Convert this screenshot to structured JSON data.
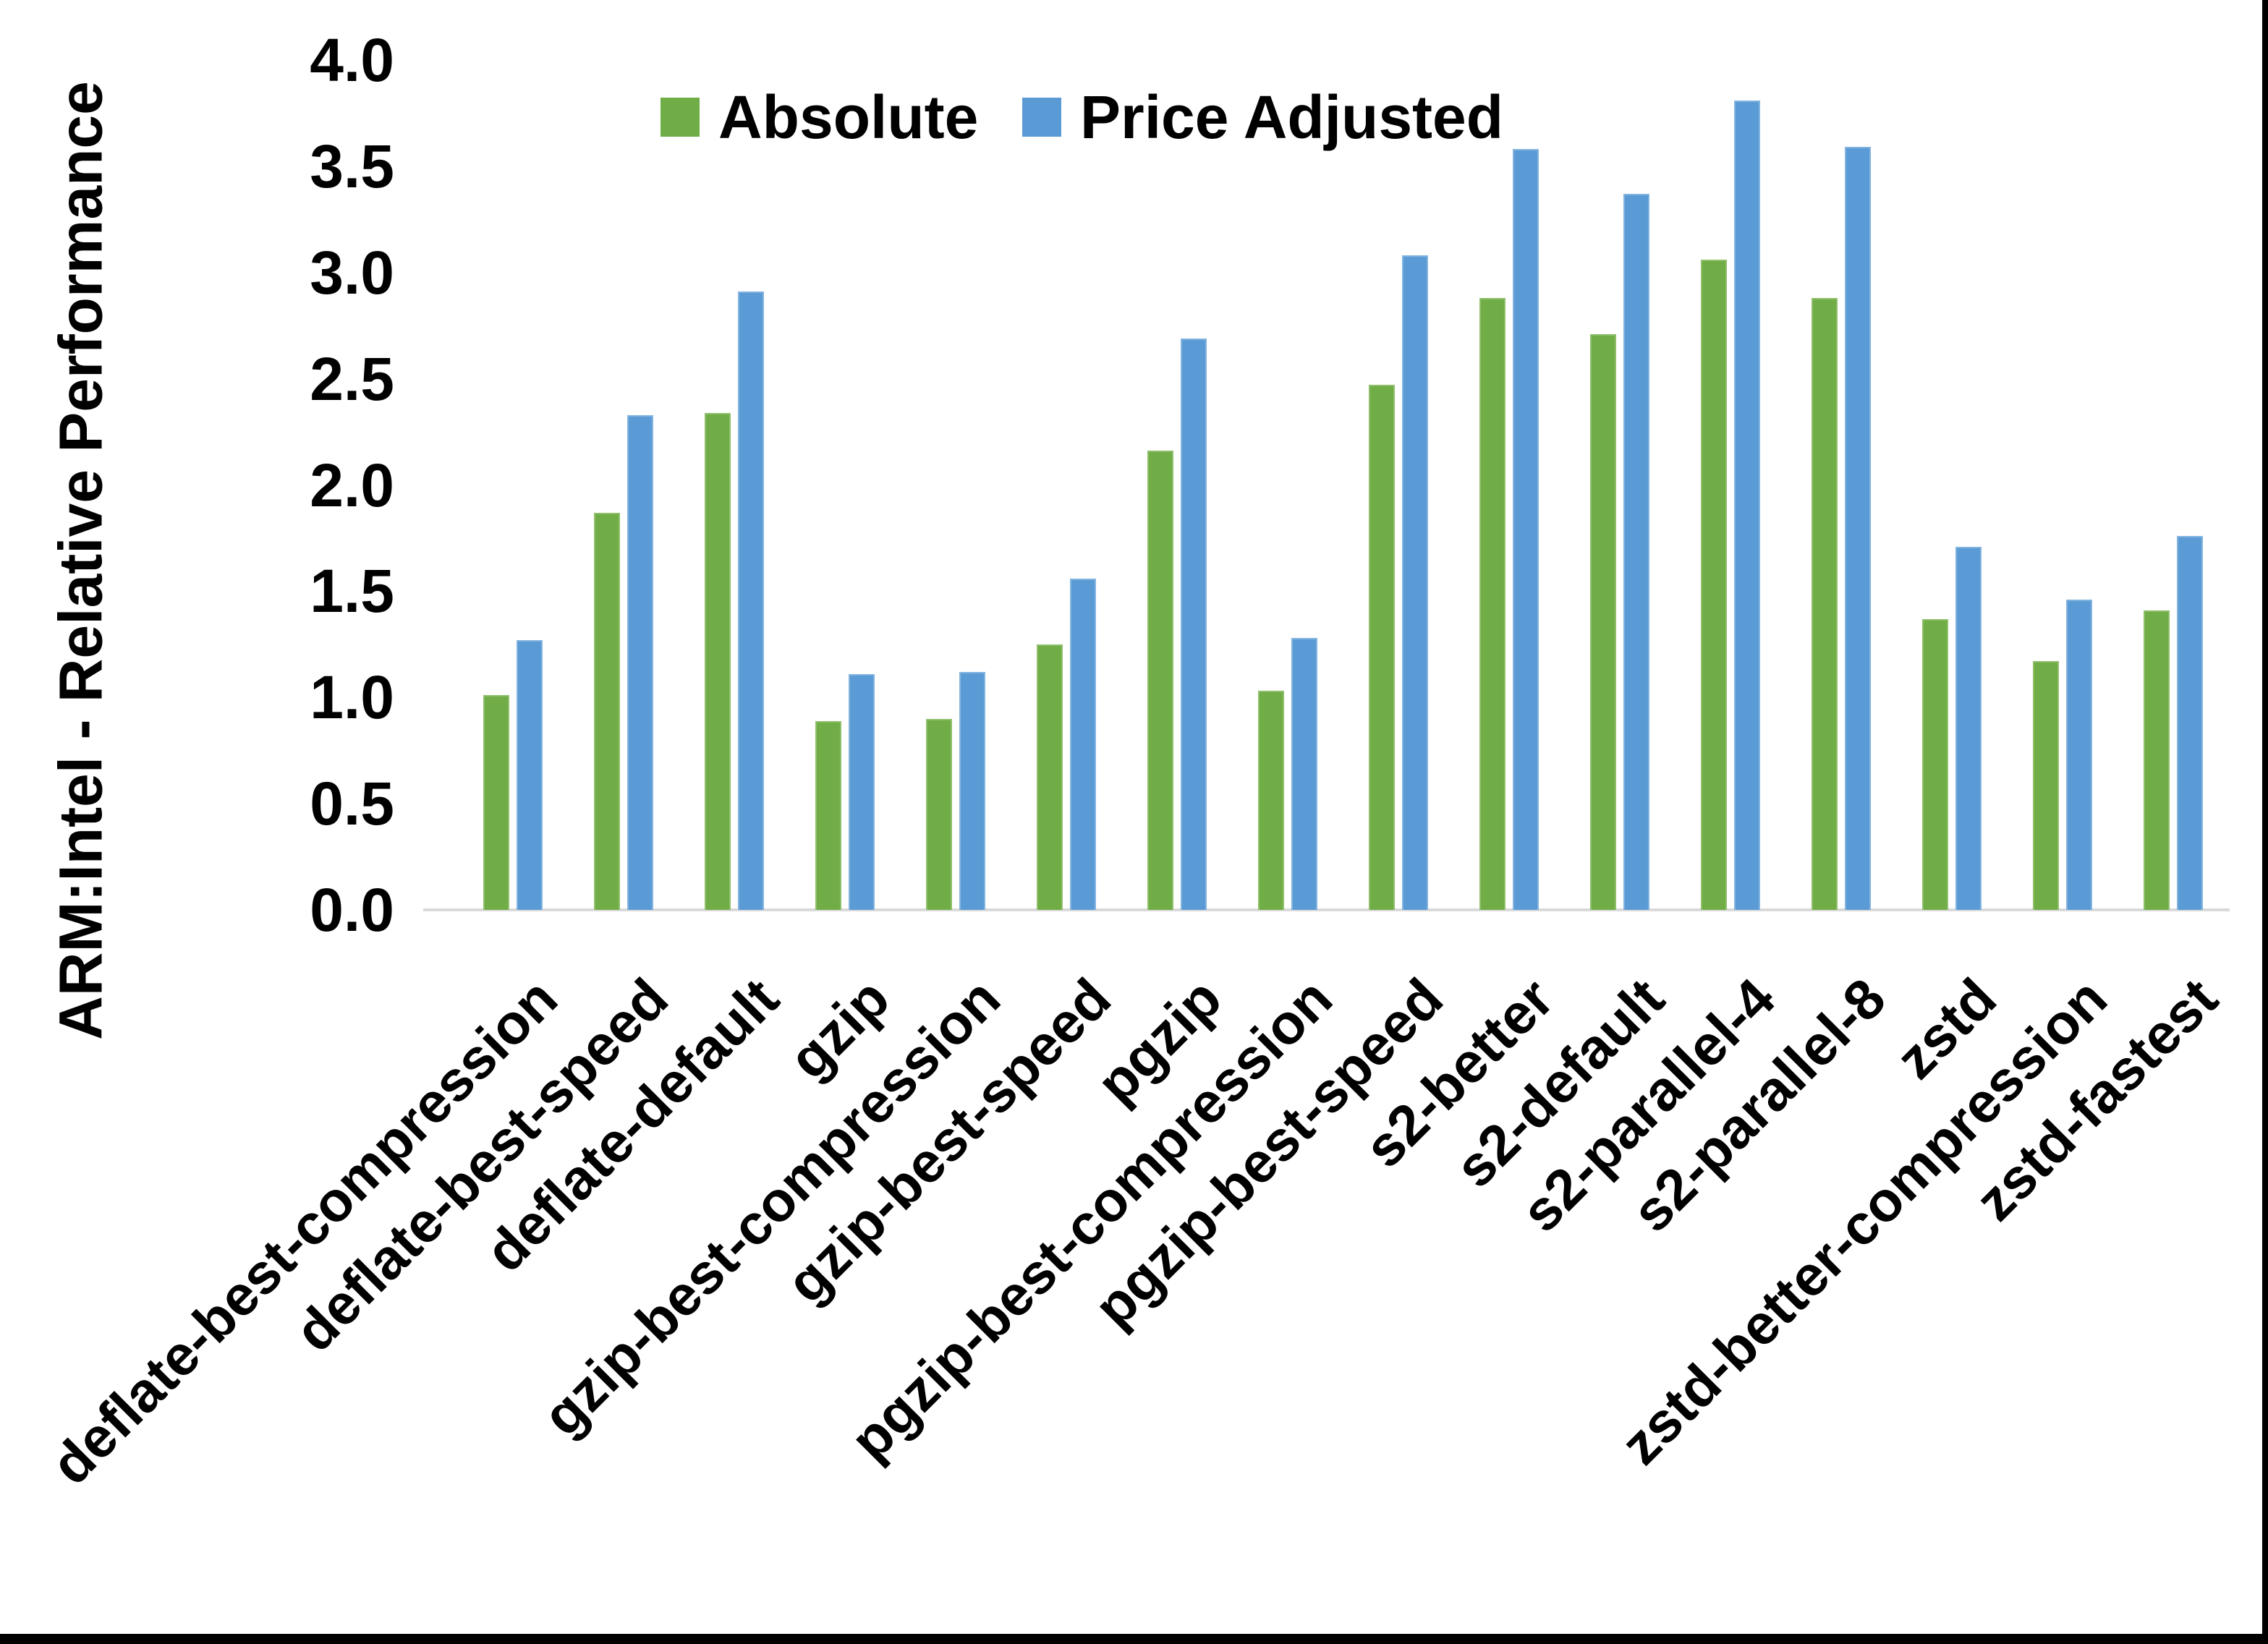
{
  "chart_data": {
    "type": "bar",
    "title": "",
    "ylabel": "ARM:Intel - Relative Performance",
    "xlabel": "",
    "ylim": [
      0.0,
      4.0
    ],
    "ytick_step": 0.5,
    "grid": false,
    "legend_position": "top-center",
    "x_label_rotation_deg": 45,
    "categories": [
      "deflate-best-compression",
      "deflate-best-speed",
      "deflate-default",
      "gzip",
      "gzip-best-compression",
      "gzip-best-speed",
      "pgzip",
      "pgzip-best-compression",
      "pgzip-best-speed",
      "s2-better",
      "s2-default",
      "s2-parallel-4",
      "s2-parallel-8",
      "zstd",
      "zstd-better-compression",
      "zstd-fastest"
    ],
    "series": [
      {
        "name": "Absolute",
        "color": "#70AD47",
        "border_color": "#8FBF6B",
        "values": [
          1.01,
          1.87,
          2.34,
          0.89,
          0.9,
          1.25,
          2.16,
          1.03,
          2.47,
          2.88,
          2.71,
          3.06,
          2.88,
          1.37,
          1.17,
          1.41
        ]
      },
      {
        "name": "Price Adjusted",
        "color": "#5B9BD5",
        "border_color": "#83B4E0",
        "values": [
          1.27,
          2.33,
          2.91,
          1.11,
          1.12,
          1.56,
          2.69,
          1.28,
          3.08,
          3.58,
          3.37,
          3.81,
          3.59,
          1.71,
          1.46,
          1.76
        ]
      }
    ],
    "axis_colors": {
      "baseline": "#D9D9D9",
      "text": "#000000"
    }
  }
}
